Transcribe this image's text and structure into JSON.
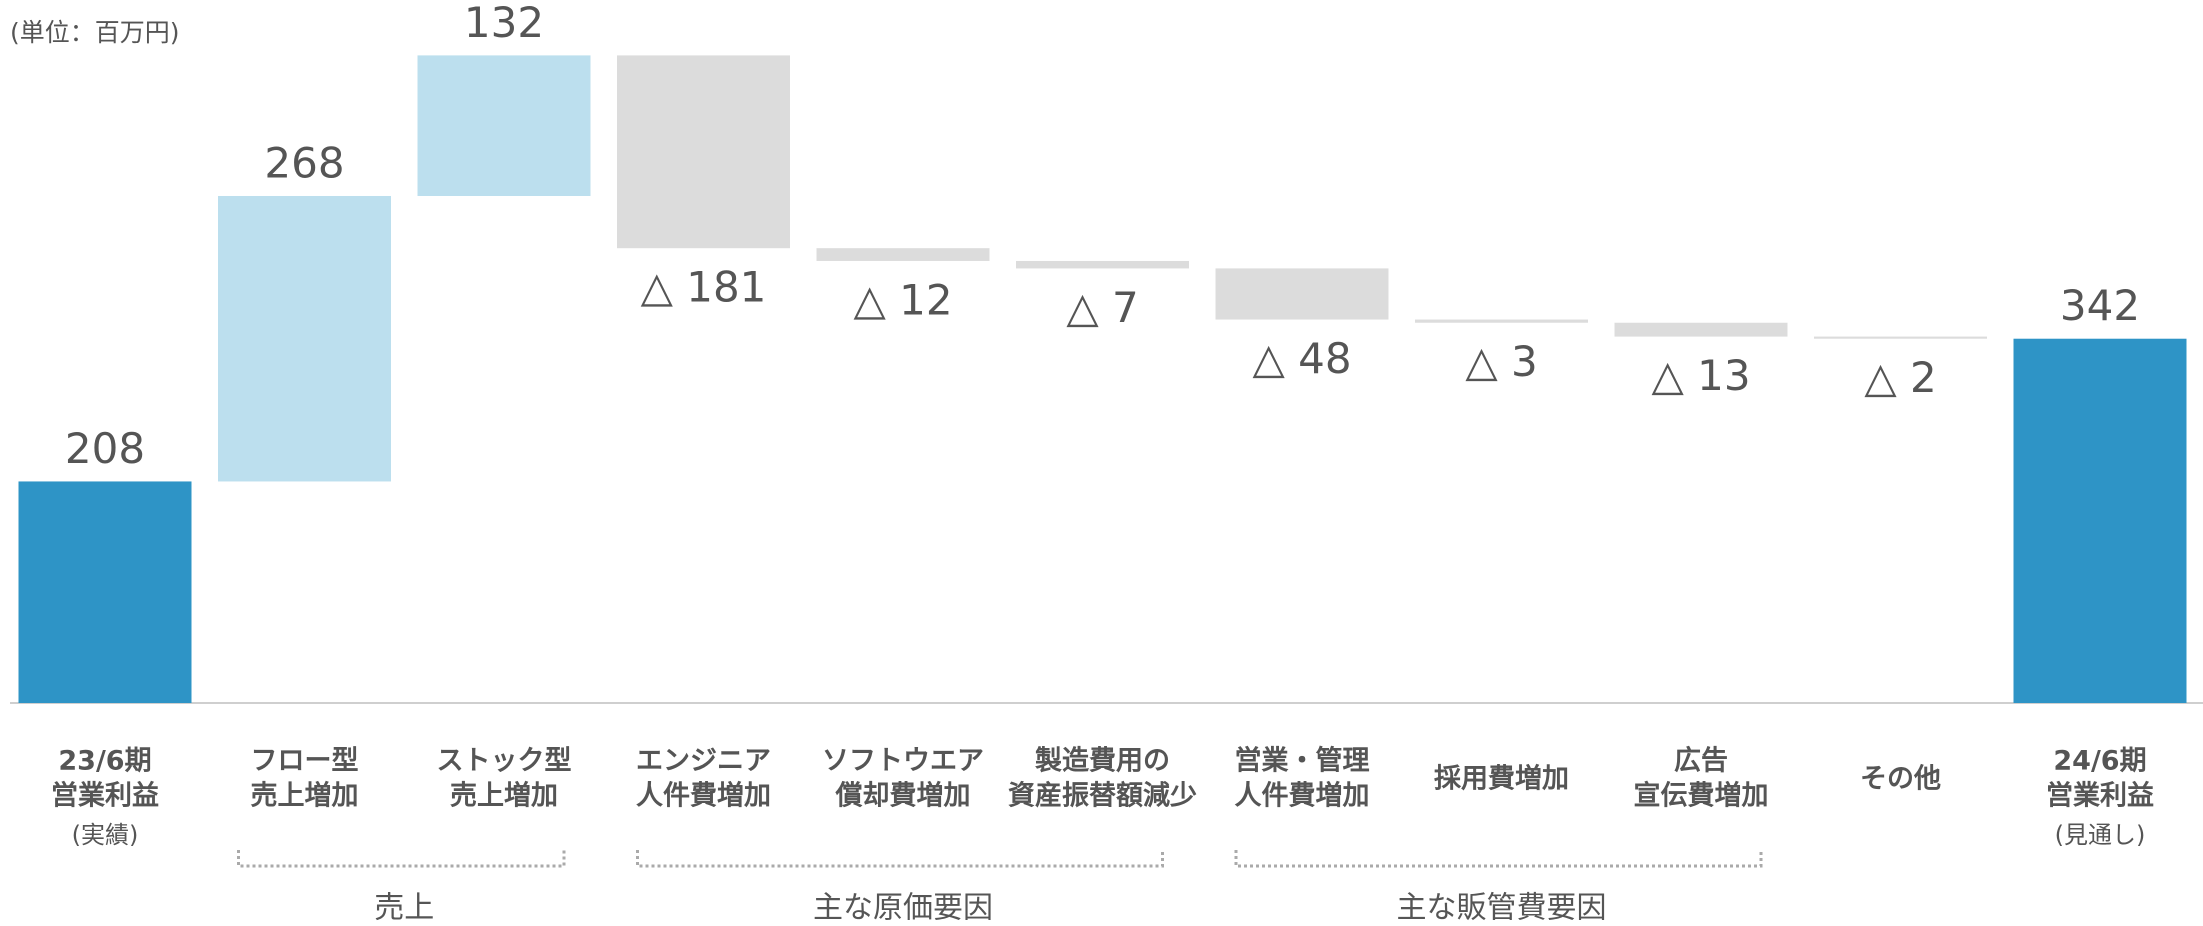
{
  "chart_data": {
    "type": "waterfall",
    "unit_note": "(単位：百万円)",
    "categories": [
      [
        "23/6期",
        "営業利益"
      ],
      [
        "フロー型",
        "売上増加"
      ],
      [
        "ストック型",
        "売上増加"
      ],
      [
        "エンジニア",
        "人件費増加"
      ],
      [
        "ソフトウエア",
        "償却費増加"
      ],
      [
        "製造費用の",
        "資産振替額減少"
      ],
      [
        "営業・管理",
        "人件費増加"
      ],
      [
        "採用費増加"
      ],
      [
        "広告",
        "宣伝費増加"
      ],
      [
        "その他"
      ],
      [
        "24/6期",
        "営業利益"
      ]
    ],
    "category_notes": [
      "(実績)",
      null,
      null,
      null,
      null,
      null,
      null,
      null,
      null,
      null,
      "(見通し)"
    ],
    "measure": [
      "total",
      "relative",
      "relative",
      "relative",
      "relative",
      "relative",
      "relative",
      "relative",
      "relative",
      "relative",
      "total"
    ],
    "values": [
      208,
      268,
      132,
      -181,
      -12,
      -7,
      -48,
      -3,
      -13,
      -2,
      342
    ],
    "value_labels": [
      "208",
      "268",
      "132",
      "△ 181",
      "△ 12",
      "△ 7",
      "△ 48",
      "△ 3",
      "△ 13",
      "△ 2",
      "342"
    ],
    "colors": {
      "total": "#2e94c6",
      "increase": "#bcdfee",
      "decrease": "#dcdcdc"
    },
    "groups": [
      {
        "label": "売上",
        "span": [
          1,
          2
        ]
      },
      {
        "label": "主な原価要因",
        "span": [
          3,
          5
        ]
      },
      {
        "label": "主な販管費要因",
        "span": [
          6,
          8
        ]
      }
    ],
    "ylim": [
      0,
      660
    ]
  }
}
